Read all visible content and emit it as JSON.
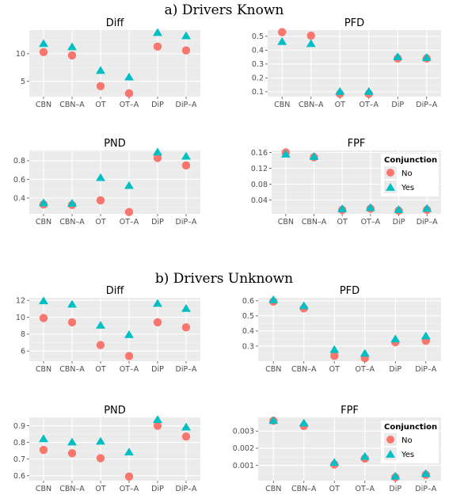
{
  "colors": {
    "no": "#F8766D",
    "yes": "#00BFC4",
    "panel_bg": "#EBEBEB",
    "grid": "#FFFFFF"
  },
  "legend": {
    "title": "Conjunction",
    "no_label": "No",
    "yes_label": "Yes"
  },
  "sections": [
    {
      "title": "a) Drivers Known"
    },
    {
      "title": "b) Drivers Unknown"
    }
  ],
  "chart_data": [
    {
      "type": "scatter",
      "title": "Diff",
      "categories": [
        "CBN",
        "CBN–A",
        "OT",
        "OT–A",
        "DiP",
        "DiP–A"
      ],
      "series": [
        {
          "name": "No",
          "values": [
            10.3,
            9.7,
            4.1,
            2.8,
            11.3,
            10.6
          ]
        },
        {
          "name": "Yes",
          "values": [
            11.8,
            11.2,
            6.9,
            5.7,
            13.8,
            13.2
          ]
        }
      ],
      "ylim": [
        2.2,
        14.3
      ],
      "yticks": [
        5,
        10
      ]
    },
    {
      "type": "scatter",
      "title": "PFD",
      "categories": [
        "CBN",
        "CBN–A",
        "OT",
        "OT–A",
        "DiP",
        "DiP–A"
      ],
      "series": [
        {
          "name": "No",
          "values": [
            0.53,
            0.505,
            0.085,
            0.085,
            0.34,
            0.34
          ]
        },
        {
          "name": "Yes",
          "values": [
            0.46,
            0.445,
            0.1,
            0.1,
            0.35,
            0.345
          ]
        }
      ],
      "ylim": [
        0.065,
        0.545
      ],
      "yticks": [
        0.1,
        0.2,
        0.3,
        0.4,
        0.5
      ]
    },
    {
      "type": "scatter",
      "title": "PND",
      "categories": [
        "CBN",
        "CBN–A",
        "OT",
        "OT–A",
        "DiP",
        "DiP–A"
      ],
      "series": [
        {
          "name": "No",
          "values": [
            0.33,
            0.325,
            0.375,
            0.25,
            0.83,
            0.75
          ]
        },
        {
          "name": "Yes",
          "values": [
            0.345,
            0.34,
            0.615,
            0.53,
            0.89,
            0.845
          ]
        }
      ],
      "ylim": [
        0.23,
        0.91
      ],
      "yticks": [
        0.4,
        0.6,
        0.8
      ]
    },
    {
      "type": "scatter",
      "title": "FPF",
      "categories": [
        "CBN",
        "CBN–A",
        "OT",
        "OT–A",
        "DiP",
        "DiP–A"
      ],
      "series": [
        {
          "name": "No",
          "values": [
            0.16,
            0.148,
            0.015,
            0.018,
            0.013,
            0.015
          ]
        },
        {
          "name": "Yes",
          "values": [
            0.155,
            0.149,
            0.017,
            0.02,
            0.015,
            0.018
          ]
        }
      ],
      "ylim": [
        0.005,
        0.165
      ],
      "yticks": [
        0.04,
        0.08,
        0.12,
        0.16
      ]
    },
    {
      "type": "scatter",
      "title": "Diff",
      "categories": [
        "CBN",
        "CBN–A",
        "OT",
        "OT–A",
        "DiP",
        "DiP–A"
      ],
      "series": [
        {
          "name": "No",
          "values": [
            9.9,
            9.4,
            6.7,
            5.4,
            9.4,
            8.8
          ]
        },
        {
          "name": "Yes",
          "values": [
            11.9,
            11.5,
            9.0,
            7.9,
            11.6,
            11.0
          ]
        }
      ],
      "ylim": [
        4.8,
        12.3
      ],
      "yticks": [
        6,
        8,
        10,
        12
      ]
    },
    {
      "type": "scatter",
      "title": "PFD",
      "categories": [
        "CBN",
        "CBN–A",
        "OT",
        "OT–A",
        "DiP",
        "DiP–A"
      ],
      "series": [
        {
          "name": "No",
          "values": [
            0.595,
            0.55,
            0.235,
            0.22,
            0.325,
            0.335
          ]
        },
        {
          "name": "Yes",
          "values": [
            0.605,
            0.565,
            0.275,
            0.25,
            0.345,
            0.365
          ]
        }
      ],
      "ylim": [
        0.2,
        0.62
      ],
      "yticks": [
        0.3,
        0.4,
        0.5,
        0.6
      ]
    },
    {
      "type": "scatter",
      "title": "PND",
      "categories": [
        "CBN",
        "CBN–A",
        "OT",
        "OT–A",
        "DiP",
        "DiP–A"
      ],
      "series": [
        {
          "name": "No",
          "values": [
            0.755,
            0.735,
            0.705,
            0.595,
            0.9,
            0.835
          ]
        },
        {
          "name": "Yes",
          "values": [
            0.82,
            0.8,
            0.805,
            0.74,
            0.935,
            0.89
          ]
        }
      ],
      "ylim": [
        0.57,
        0.95
      ],
      "yticks": [
        0.6,
        0.7,
        0.8,
        0.9
      ]
    },
    {
      "type": "scatter",
      "title": "FPF",
      "categories": [
        "CBN",
        "CBN–A",
        "OT",
        "OT–A",
        "DiP",
        "DiP–A"
      ],
      "series": [
        {
          "name": "No",
          "values": [
            0.0036,
            0.0033,
            0.00105,
            0.0014,
            0.0003,
            0.00045
          ]
        },
        {
          "name": "Yes",
          "values": [
            0.0036,
            0.00345,
            0.00115,
            0.0015,
            0.00035,
            0.0005
          ]
        }
      ],
      "ylim": [
        0.0001,
        0.0038
      ],
      "yticks": [
        0.001,
        0.002,
        0.003
      ]
    }
  ]
}
